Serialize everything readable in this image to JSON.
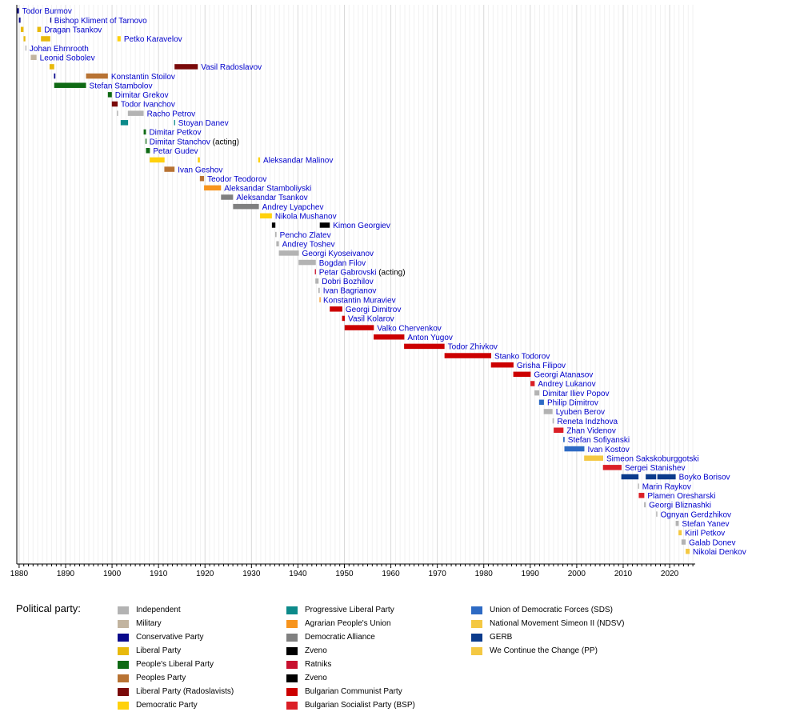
{
  "chart_data": {
    "type": "timeline",
    "xlim": [
      1879.5,
      2025.5
    ],
    "xticks": [
      1880,
      1890,
      1900,
      1910,
      1920,
      1930,
      1940,
      1950,
      1960,
      1970,
      1980,
      1990,
      2000,
      2010,
      2020
    ],
    "grid": true,
    "legend_title": "Political party:",
    "legend_placement": "bottom",
    "parties": {
      "ind": {
        "label": "Independent",
        "color": "#b3b3b3"
      },
      "mil": {
        "label": "Military",
        "color": "#c2b49f"
      },
      "con": {
        "label": "Conservative Party",
        "color": "#0a0a8c"
      },
      "lib": {
        "label": "Liberal Party",
        "color": "#e8b90c"
      },
      "plp": {
        "label": "People's Liberal Party",
        "color": "#0f6a14"
      },
      "pp": {
        "label": "Peoples Party",
        "color": "#b87333"
      },
      "lpr": {
        "label": "Liberal Party (Radoslavists)",
        "color": "#7a0a0a"
      },
      "dem": {
        "label": "Democratic Party",
        "color": "#ffd10d"
      },
      "prog": {
        "label": "Progressive Liberal Party",
        "color": "#0c8a8a"
      },
      "bzns": {
        "label": "Agrarian People's Union",
        "color": "#f7941d"
      },
      "da": {
        "label": "Democratic Alliance",
        "color": "#808080"
      },
      "zv1": {
        "label": "Zveno",
        "color": "#000000"
      },
      "rat": {
        "label": "Ratniks",
        "color": "#c8102e"
      },
      "zv2": {
        "label": "Zveno",
        "color": "#000000"
      },
      "bkp": {
        "label": "Bulgarian Communist Party",
        "color": "#cc0000"
      },
      "bsp": {
        "label": "Bulgarian Socialist Party (BSP)",
        "color": "#db1f26"
      },
      "sds": {
        "label": "Union of Democratic Forces (SDS)",
        "color": "#2d6ac4"
      },
      "ndsv": {
        "label": "National Movement Simeon II (NDSV)",
        "color": "#f4c842"
      },
      "gerb": {
        "label": "GERB",
        "color": "#0b3b8c"
      },
      "pp2": {
        "label": "We Continue the Change (PP)",
        "color": "#f4c842"
      }
    },
    "legend_columns": [
      [
        "ind",
        "mil",
        "con",
        "lib",
        "plp",
        "pp",
        "lpr",
        "dem"
      ],
      [
        "prog",
        "bzns",
        "da",
        "zv1",
        "rat",
        "zv2",
        "bkp",
        "bsp"
      ],
      [
        "sds",
        "ndsv",
        "gerb",
        "pp2"
      ]
    ],
    "rows": [
      {
        "name": "Todor Burmov",
        "note": "",
        "terms": [
          [
            1879.55,
            1879.95,
            "con"
          ]
        ]
      },
      {
        "name": "Bishop Kliment of Tarnovo",
        "note": "",
        "terms": [
          [
            1879.95,
            1880.3,
            "con"
          ],
          [
            1886.7,
            1886.85,
            "con"
          ]
        ]
      },
      {
        "name": "Dragan Tsankov",
        "note": "",
        "terms": [
          [
            1880.35,
            1880.95,
            "lib"
          ],
          [
            1883.9,
            1884.7,
            "lib"
          ]
        ]
      },
      {
        "name": "Petko Karavelov",
        "note": "",
        "terms": [
          [
            1880.95,
            1881.35,
            "lib"
          ],
          [
            1884.7,
            1886.7,
            "lib"
          ],
          [
            1901.15,
            1901.85,
            "dem"
          ]
        ]
      },
      {
        "name": "Johan Ehrnrooth",
        "note": "",
        "terms": [
          [
            1881.35,
            1881.55,
            "ind"
          ]
        ]
      },
      {
        "name": "Leonid Sobolev",
        "note": "",
        "terms": [
          [
            1882.5,
            1883.75,
            "mil"
          ]
        ]
      },
      {
        "name": "Vasil Radoslavov",
        "note": "",
        "terms": [
          [
            1886.55,
            1887.55,
            "lib"
          ],
          [
            1913.45,
            1918.45,
            "lpr"
          ]
        ]
      },
      {
        "name": "Konstantin Stoilov",
        "note": "",
        "terms": [
          [
            1887.5,
            1887.8,
            "con"
          ],
          [
            1894.4,
            1899.1,
            "pp"
          ]
        ]
      },
      {
        "name": "Stefan Stambolov",
        "note": "",
        "terms": [
          [
            1887.55,
            1894.4,
            "plp"
          ]
        ]
      },
      {
        "name": "Dimitar Grekov",
        "note": "",
        "terms": [
          [
            1899.1,
            1899.95,
            "plp"
          ]
        ]
      },
      {
        "name": "Todor Ivanchov",
        "note": "",
        "terms": [
          [
            1899.95,
            1901.2,
            "lpr"
          ]
        ]
      },
      {
        "name": "Racho Petrov",
        "note": "",
        "terms": [
          [
            1901.05,
            1901.3,
            "ind"
          ],
          [
            1903.4,
            1906.8,
            "ind"
          ]
        ]
      },
      {
        "name": "Stoyan Danev",
        "note": "",
        "terms": [
          [
            1901.85,
            1903.45,
            "prog"
          ],
          [
            1913.35,
            1913.55,
            "prog"
          ]
        ]
      },
      {
        "name": "Dimitar Petkov",
        "note": "",
        "terms": [
          [
            1906.8,
            1907.3,
            "plp"
          ]
        ]
      },
      {
        "name": "Dimitar Stanchov",
        "note": " (acting)",
        "terms": [
          [
            1907.2,
            1907.35,
            "plp"
          ]
        ]
      },
      {
        "name": "Petar Gudev",
        "note": "",
        "terms": [
          [
            1907.3,
            1908.15,
            "plp"
          ]
        ]
      },
      {
        "name": "Aleksandar Malinov",
        "note": "",
        "terms": [
          [
            1908.1,
            1911.3,
            "dem"
          ],
          [
            1918.45,
            1918.9,
            "dem"
          ],
          [
            1931.45,
            1931.85,
            "dem"
          ]
        ]
      },
      {
        "name": "Ivan Geshov",
        "note": "",
        "terms": [
          [
            1911.25,
            1913.45,
            "pp"
          ]
        ]
      },
      {
        "name": "Teodor Teodorov",
        "note": "",
        "terms": [
          [
            1918.9,
            1919.8,
            "pp"
          ]
        ]
      },
      {
        "name": "Aleksandar Stamboliyski",
        "note": "",
        "terms": [
          [
            1919.8,
            1923.45,
            "bzns"
          ]
        ]
      },
      {
        "name": "Aleksandar Tsankov",
        "note": "",
        "terms": [
          [
            1923.45,
            1926.05,
            "da"
          ]
        ]
      },
      {
        "name": "Andrey Lyapchev",
        "note": "",
        "terms": [
          [
            1926.05,
            1931.6,
            "da"
          ]
        ]
      },
      {
        "name": "Nikola Mushanov",
        "note": "",
        "terms": [
          [
            1931.85,
            1934.4,
            "dem"
          ]
        ]
      },
      {
        "name": "Kimon Georgiev",
        "note": "",
        "terms": [
          [
            1934.4,
            1935.15,
            "zv1"
          ],
          [
            1944.7,
            1946.85,
            "zv2"
          ]
        ]
      },
      {
        "name": "Pencho Zlatev",
        "note": "",
        "terms": [
          [
            1935.1,
            1935.4,
            "ind"
          ]
        ]
      },
      {
        "name": "Andrey Toshev",
        "note": "",
        "terms": [
          [
            1935.35,
            1935.9,
            "ind"
          ]
        ]
      },
      {
        "name": "Georgi Kyoseivanov",
        "note": "",
        "terms": [
          [
            1935.9,
            1940.2,
            "ind"
          ]
        ]
      },
      {
        "name": "Bogdan Filov",
        "note": "",
        "terms": [
          [
            1940.15,
            1943.85,
            "ind"
          ]
        ]
      },
      {
        "name": "Petar Gabrovski",
        "note": " (acting)",
        "terms": [
          [
            1943.65,
            1943.85,
            "rat"
          ]
        ]
      },
      {
        "name": "Dobri Bozhilov",
        "note": "",
        "terms": [
          [
            1943.75,
            1944.45,
            "ind"
          ]
        ]
      },
      {
        "name": "Ivan Bagrianov",
        "note": "",
        "terms": [
          [
            1944.4,
            1944.7,
            "ind"
          ]
        ]
      },
      {
        "name": "Konstantin Muraviev",
        "note": "",
        "terms": [
          [
            1944.65,
            1944.75,
            "bzns"
          ]
        ]
      },
      {
        "name": "Georgi Dimitrov",
        "note": "",
        "terms": [
          [
            1946.85,
            1949.55,
            "bkp"
          ]
        ]
      },
      {
        "name": "Vasil Kolarov",
        "note": "",
        "terms": [
          [
            1949.5,
            1950.1,
            "bkp"
          ]
        ]
      },
      {
        "name": "Valko Chervenkov",
        "note": "",
        "terms": [
          [
            1950.05,
            1956.35,
            "bkp"
          ]
        ]
      },
      {
        "name": "Anton Yugov",
        "note": "",
        "terms": [
          [
            1956.3,
            1962.9,
            "bkp"
          ]
        ]
      },
      {
        "name": "Todor Zhivkov",
        "note": "",
        "terms": [
          [
            1962.85,
            1971.55,
            "bkp"
          ]
        ]
      },
      {
        "name": "Stanko Todorov",
        "note": "",
        "terms": [
          [
            1971.55,
            1981.6,
            "bkp"
          ]
        ]
      },
      {
        "name": "Grisha Filipov",
        "note": "",
        "terms": [
          [
            1981.55,
            1986.4,
            "bkp"
          ]
        ]
      },
      {
        "name": "Georgi Atanasov",
        "note": "",
        "terms": [
          [
            1986.35,
            1990.1,
            "bkp"
          ]
        ]
      },
      {
        "name": "Andrey Lukanov",
        "note": "",
        "terms": [
          [
            1990.05,
            1990.95,
            "bsp"
          ]
        ]
      },
      {
        "name": "Dimitar Iliev Popov",
        "note": "",
        "terms": [
          [
            1990.9,
            1991.95,
            "ind"
          ]
        ]
      },
      {
        "name": "Philip Dimitrov",
        "note": "",
        "terms": [
          [
            1991.9,
            1992.95,
            "sds"
          ]
        ]
      },
      {
        "name": "Lyuben Berov",
        "note": "",
        "terms": [
          [
            1992.9,
            1994.8,
            "ind"
          ]
        ]
      },
      {
        "name": "Reneta Indzhova",
        "note": "",
        "terms": [
          [
            1994.8,
            1995.1,
            "ind"
          ]
        ]
      },
      {
        "name": "Zhan Videnov",
        "note": "",
        "terms": [
          [
            1995.05,
            1997.15,
            "bsp"
          ]
        ]
      },
      {
        "name": "Stefan Sofiyanski",
        "note": "",
        "terms": [
          [
            1997.1,
            1997.4,
            "sds"
          ]
        ]
      },
      {
        "name": "Ivan Kostov",
        "note": "",
        "terms": [
          [
            1997.35,
            2001.65,
            "sds"
          ]
        ]
      },
      {
        "name": "Simeon Sakskoburggotski",
        "note": "",
        "terms": [
          [
            2001.6,
            2005.7,
            "ndsv"
          ]
        ]
      },
      {
        "name": "Sergei Stanishev",
        "note": "",
        "terms": [
          [
            2005.65,
            2009.65,
            "bsp"
          ]
        ]
      },
      {
        "name": "Boyko Borisov",
        "note": "",
        "terms": [
          [
            2009.6,
            2013.3,
            "gerb"
          ],
          [
            2014.85,
            2017.1,
            "gerb"
          ],
          [
            2017.35,
            2021.3,
            "gerb"
          ]
        ]
      },
      {
        "name": "Marin Raykov",
        "note": "",
        "terms": [
          [
            2013.2,
            2013.4,
            "ind"
          ]
        ]
      },
      {
        "name": "Plamen Oresharski",
        "note": "",
        "terms": [
          [
            2013.35,
            2014.55,
            "bsp"
          ]
        ]
      },
      {
        "name": "Georgi Bliznashki",
        "note": "",
        "terms": [
          [
            2014.5,
            2014.85,
            "ind"
          ]
        ]
      },
      {
        "name": "Ognyan Gerdzhikov",
        "note": "",
        "terms": [
          [
            2017.1,
            2017.35,
            "ind"
          ]
        ]
      },
      {
        "name": "Stefan Yanev",
        "note": "",
        "terms": [
          [
            2021.3,
            2021.95,
            "ind"
          ]
        ]
      },
      {
        "name": "Kiril Petkov",
        "note": "",
        "terms": [
          [
            2021.9,
            2022.6,
            "pp2"
          ]
        ]
      },
      {
        "name": "Galab Donev",
        "note": "",
        "terms": [
          [
            2022.55,
            2023.45,
            "ind"
          ]
        ]
      },
      {
        "name": "Nikolai Denkov",
        "note": "",
        "terms": [
          [
            2023.45,
            2024.3,
            "ndsv"
          ]
        ]
      }
    ]
  }
}
